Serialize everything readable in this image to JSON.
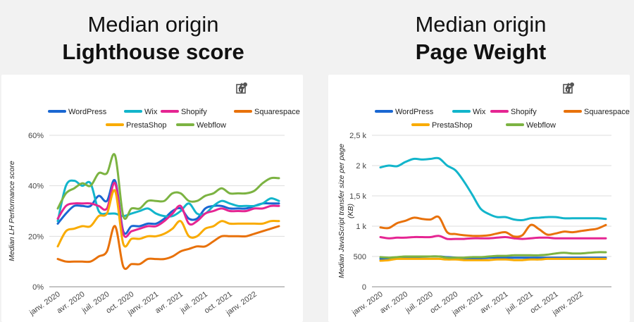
{
  "headers": {
    "left": {
      "line1": "Median origin",
      "line2": "Lighthouse score"
    },
    "right": {
      "line1": "Median origin",
      "line2": "Page Weight"
    }
  },
  "toolbar": {
    "icons": [
      "explore-chart-icon",
      "bolt-icon",
      "more-vert-icon"
    ]
  },
  "colors": {
    "WordPress": "#1967d2",
    "Wix": "#12b5cb",
    "Shopify": "#e52592",
    "Squarespace": "#e8710a",
    "PrestaShop": "#f9ab00",
    "Webflow": "#7cb342"
  },
  "chart_data": [
    {
      "type": "line",
      "title": "",
      "xlabel": "",
      "ylabel": "Median LH Performance score",
      "ylim": [
        0,
        60
      ],
      "yticks": [
        "0%",
        "20%",
        "40%",
        "60%"
      ],
      "ytick_values": [
        0,
        20,
        40,
        60
      ],
      "grid": true,
      "legend": "top",
      "x_tick_labels": [
        "janv. 2020",
        "avr. 2020",
        "juil. 2020",
        "oct. 2020",
        "janv. 2021",
        "avr. 2021",
        "juil. 2021",
        "oct. 2021",
        "janv. 2022"
      ],
      "x_tick_index": [
        0,
        3,
        6,
        9,
        12,
        15,
        18,
        21,
        24
      ],
      "x": [
        "2020-01",
        "2020-02",
        "2020-03",
        "2020-04",
        "2020-05",
        "2020-06",
        "2020-07",
        "2020-08",
        "2020-09",
        "2020-10",
        "2020-11",
        "2020-12",
        "2021-01",
        "2021-02",
        "2021-03",
        "2021-04",
        "2021-05",
        "2021-06",
        "2021-07",
        "2021-08",
        "2021-09",
        "2021-10",
        "2021-11",
        "2021-12",
        "2022-01",
        "2022-02",
        "2022-03",
        "2022-04"
      ],
      "series": [
        {
          "name": "WordPress",
          "values": [
            25,
            29,
            32,
            32,
            32,
            36,
            34,
            42,
            22,
            24,
            24,
            25,
            25,
            27,
            30,
            31,
            27,
            27,
            31,
            32,
            32,
            31,
            31,
            31,
            32,
            33,
            33,
            33
          ]
        },
        {
          "name": "Wix",
          "values": [
            26,
            40,
            42,
            40,
            41,
            30,
            29,
            29,
            28,
            29,
            30,
            31,
            29,
            28,
            28,
            30,
            33,
            29,
            29,
            32,
            34,
            33,
            32,
            32,
            32,
            33,
            35,
            34
          ]
        },
        {
          "name": "Shopify",
          "values": [
            27,
            32,
            33,
            33,
            33,
            32,
            31,
            41,
            21,
            22,
            23,
            24,
            24,
            26,
            29,
            32,
            25,
            26,
            29,
            30,
            31,
            30,
            30,
            30,
            31,
            31,
            32,
            32
          ]
        },
        {
          "name": "Squarespace",
          "values": [
            11,
            10,
            10,
            10,
            10,
            12,
            14,
            24,
            8,
            9,
            9,
            11,
            11,
            11,
            12,
            14,
            15,
            16,
            16,
            18,
            20,
            20,
            20,
            20,
            21,
            22,
            23,
            24
          ]
        },
        {
          "name": "PrestaShop",
          "values": [
            16,
            22,
            23,
            24,
            24,
            28,
            29,
            38,
            17,
            19,
            19,
            20,
            20,
            21,
            23,
            26,
            20,
            20,
            23,
            24,
            26,
            25,
            25,
            25,
            25,
            25,
            26,
            26
          ]
        },
        {
          "name": "Webflow",
          "values": [
            31,
            37,
            39,
            41,
            40,
            45,
            45,
            52,
            28,
            31,
            31,
            34,
            34,
            34,
            37,
            37,
            34,
            34,
            36,
            37,
            39,
            37,
            37,
            37,
            38,
            41,
            43,
            43
          ]
        }
      ]
    },
    {
      "type": "line",
      "title": "",
      "xlabel": "",
      "ylabel": "Median JavaScript transfer size per page (KB)",
      "ylim": [
        0,
        2500
      ],
      "yticks": [
        "0",
        "500",
        "1 k",
        "1,5 k",
        "2 k",
        "2,5 k"
      ],
      "ytick_values": [
        0,
        500,
        1000,
        1500,
        2000,
        2500
      ],
      "grid": true,
      "legend": "top",
      "x_tick_labels": [
        "janv. 2020",
        "avr. 2020",
        "juil. 2020",
        "oct. 2020",
        "janv. 2021",
        "avr. 2021",
        "juil. 2021",
        "oct. 2021",
        "janv. 2022"
      ],
      "x_tick_index": [
        0,
        3,
        6,
        9,
        12,
        15,
        18,
        21,
        24
      ],
      "x": [
        "2020-01",
        "2020-02",
        "2020-03",
        "2020-04",
        "2020-05",
        "2020-06",
        "2020-07",
        "2020-08",
        "2020-09",
        "2020-10",
        "2020-11",
        "2020-12",
        "2021-01",
        "2021-02",
        "2021-03",
        "2021-04",
        "2021-05",
        "2021-06",
        "2021-07",
        "2021-08",
        "2021-09",
        "2021-10",
        "2021-11",
        "2021-12",
        "2022-01",
        "2022-02",
        "2022-03",
        "2022-04"
      ],
      "series": [
        {
          "name": "WordPress",
          "values": [
            460,
            470,
            480,
            490,
            490,
            495,
            500,
            500,
            490,
            480,
            470,
            470,
            470,
            480,
            480,
            480,
            480,
            480,
            480,
            480,
            480,
            480,
            480,
            480,
            480,
            480,
            480,
            480
          ]
        },
        {
          "name": "Wix",
          "values": [
            1970,
            2000,
            1990,
            2060,
            2110,
            2100,
            2110,
            2120,
            2000,
            1920,
            1740,
            1520,
            1290,
            1200,
            1150,
            1150,
            1110,
            1100,
            1130,
            1140,
            1150,
            1150,
            1130,
            1130,
            1130,
            1130,
            1130,
            1120
          ]
        },
        {
          "name": "Shopify",
          "values": [
            820,
            800,
            810,
            810,
            820,
            820,
            820,
            840,
            790,
            790,
            790,
            800,
            800,
            800,
            810,
            820,
            800,
            790,
            800,
            810,
            810,
            800,
            800,
            800,
            800,
            800,
            800,
            800
          ]
        },
        {
          "name": "Squarespace",
          "values": [
            980,
            970,
            1050,
            1090,
            1140,
            1120,
            1110,
            1150,
            900,
            870,
            850,
            840,
            840,
            850,
            880,
            900,
            830,
            850,
            1020,
            950,
            860,
            880,
            910,
            900,
            920,
            940,
            960,
            1020
          ]
        },
        {
          "name": "PrestaShop",
          "values": [
            430,
            440,
            460,
            460,
            460,
            460,
            460,
            460,
            450,
            450,
            440,
            440,
            440,
            440,
            450,
            450,
            440,
            440,
            450,
            450,
            460,
            460,
            460,
            460,
            460,
            460,
            460,
            460
          ]
        },
        {
          "name": "Webflow",
          "values": [
            490,
            480,
            490,
            500,
            500,
            500,
            500,
            500,
            480,
            480,
            480,
            490,
            490,
            500,
            510,
            510,
            520,
            520,
            520,
            520,
            530,
            550,
            560,
            550,
            550,
            560,
            570,
            570
          ]
        }
      ]
    }
  ]
}
